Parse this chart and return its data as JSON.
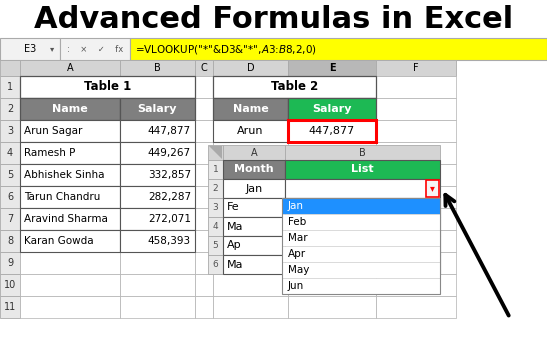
{
  "title": "Advanced Formulas in Excel",
  "title_fontsize": 22,
  "bg_color": "#ffffff",
  "formula_bar_text": "=VLOOKUP(\"*\"&D3&\"*\",$A$3:$B$8,2,0)",
  "formula_bg": "#ffff00",
  "cell_ref": "E3",
  "table1_header": "Table 1",
  "table1_cols": [
    "Name",
    "Salary"
  ],
  "table1_col_header_bg": "#7f7f7f",
  "table1_col_header_fg": "#ffffff",
  "table1_data": [
    [
      "Arun Sagar",
      "447,877"
    ],
    [
      "Ramesh P",
      "449,267"
    ],
    [
      "Abhishek Sinha",
      "332,857"
    ],
    [
      "Tarun Chandru",
      "282,287"
    ],
    [
      "Aravind Sharma",
      "272,071"
    ],
    [
      "Karan Gowda",
      "458,393"
    ]
  ],
  "table2_header": "Table 2",
  "table2_cols": [
    "Name",
    "Salary"
  ],
  "table2_name_header_bg": "#7f7f7f",
  "table2_name_header_fg": "#ffffff",
  "table2_salary_header_bg": "#1db954",
  "table2_salary_header_fg": "#ffffff",
  "table2_data": [
    [
      "Arun",
      "447,877"
    ]
  ],
  "table3_cols": [
    "Month",
    "List"
  ],
  "table3_month_header_bg": "#7f7f7f",
  "table3_month_header_fg": "#ffffff",
  "table3_list_header_bg": "#1db954",
  "table3_list_header_fg": "#ffffff",
  "table3_months": [
    "Jan",
    "Fe",
    "Ma",
    "Ap",
    "Ma"
  ],
  "dropdown_items": [
    "Jan",
    "Feb",
    "Mar",
    "Apr",
    "May",
    "Jun"
  ],
  "dropdown_selected_bg": "#1e90ff",
  "dropdown_selected_fg": "#ffffff",
  "salary_cell_border_color": "#ff0000",
  "arrow_color": "#000000",
  "col_header_bg": "#d4d4d4",
  "row_num_bg": "#e8e8e8",
  "grid_color": "#b0b0b0",
  "dark_grid": "#555555"
}
